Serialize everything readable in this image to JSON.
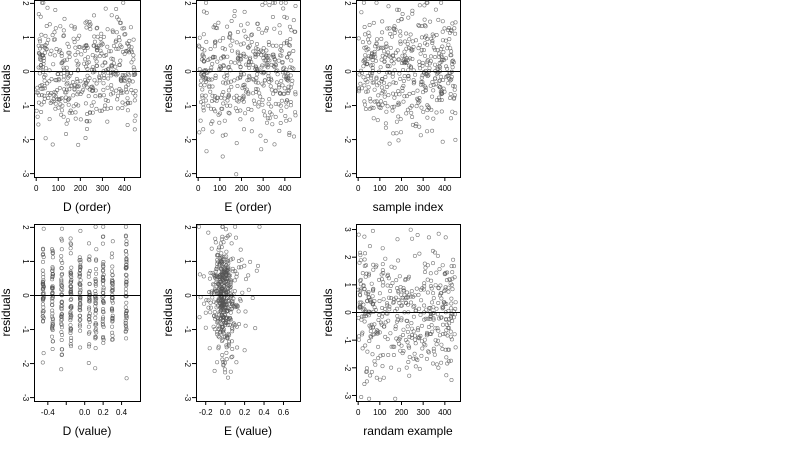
{
  "colors": {
    "points": "#555555",
    "axis": "#000000",
    "background": "#ffffff"
  },
  "chart_data": [
    {
      "type": "scatter",
      "xlabel": "D (order)",
      "ylabel": "residuals",
      "xlim": [
        -10,
        470
      ],
      "ylim": [
        -3.1,
        2.1
      ],
      "xticks": [
        0,
        100,
        200,
        300,
        400
      ],
      "yticks": [
        -3,
        -2,
        -1,
        0,
        1,
        2
      ],
      "hline": 0,
      "n_points": 450,
      "x_distribution": "index",
      "x_range": [
        1,
        450
      ],
      "y_distribution": "normal",
      "seed": 11,
      "points": []
    },
    {
      "type": "scatter",
      "xlabel": "E (order)",
      "ylabel": "residuals",
      "xlim": [
        -10,
        470
      ],
      "ylim": [
        -3.1,
        2.1
      ],
      "xticks": [
        0,
        100,
        200,
        300,
        400
      ],
      "yticks": [
        -3,
        -2,
        -1,
        0,
        1,
        2
      ],
      "hline": 0,
      "n_points": 450,
      "x_distribution": "index",
      "x_range": [
        1,
        450
      ],
      "y_distribution": "normal",
      "seed": 23,
      "points": []
    },
    {
      "type": "scatter",
      "xlabel": "sample index",
      "ylabel": "residuals",
      "xlim": [
        -10,
        470
      ],
      "ylim": [
        -3.1,
        2.1
      ],
      "xticks": [
        0,
        100,
        200,
        300,
        400
      ],
      "yticks": [
        -3,
        -2,
        -1,
        0,
        1,
        2
      ],
      "hline": 0,
      "n_points": 450,
      "x_distribution": "index",
      "x_range": [
        1,
        450
      ],
      "y_distribution": "normal",
      "seed": 37,
      "points": []
    },
    {
      "type": "scatter",
      "xlabel": "D (value)",
      "ylabel": "residuals",
      "xlim": [
        -0.55,
        0.6
      ],
      "ylim": [
        -3.1,
        2.1
      ],
      "xticks": [
        -0.4,
        -0.2,
        0.0,
        0.2,
        0.4
      ],
      "xtick_labels": [
        "-0.4",
        "",
        "0.0",
        "0.2",
        "0.4"
      ],
      "yticks": [
        -3,
        -2,
        -1,
        0,
        1,
        2
      ],
      "hline": 0,
      "n_points": 450,
      "x_distribution": "discrete",
      "x_levels": [
        -0.45,
        -0.35,
        -0.25,
        -0.15,
        -0.05,
        0.05,
        0.12,
        0.2,
        0.3,
        0.45
      ],
      "y_distribution": "normal",
      "seed": 41,
      "points": []
    },
    {
      "type": "scatter",
      "xlabel": "E (value)",
      "ylabel": "residuals",
      "xlim": [
        -0.3,
        0.77
      ],
      "ylim": [
        -3.1,
        2.1
      ],
      "xticks": [
        -0.2,
        0.0,
        0.2,
        0.4,
        0.6
      ],
      "xtick_labels": [
        "-0.2",
        "0.0",
        "0.2",
        "0.4",
        "0.6"
      ],
      "yticks": [
        -3,
        -2,
        -1,
        0,
        1,
        2
      ],
      "hline": 0,
      "n_points": 450,
      "x_distribution": "skewed",
      "x_center": -0.02,
      "x_spread": 0.18,
      "y_distribution": "normal",
      "seed": 53,
      "points": []
    },
    {
      "type": "scatter",
      "xlabel": "randam example",
      "ylabel": "residuals",
      "xlim": [
        -10,
        470
      ],
      "ylim": [
        -3.2,
        3.2
      ],
      "xticks": [
        0,
        100,
        200,
        300,
        400
      ],
      "yticks": [
        -3,
        -2,
        -1,
        0,
        1,
        2,
        3
      ],
      "hline": 0,
      "n_points": 450,
      "x_distribution": "index",
      "x_range": [
        1,
        450
      ],
      "y_distribution": "normal_wide",
      "seed": 67,
      "points": []
    }
  ]
}
